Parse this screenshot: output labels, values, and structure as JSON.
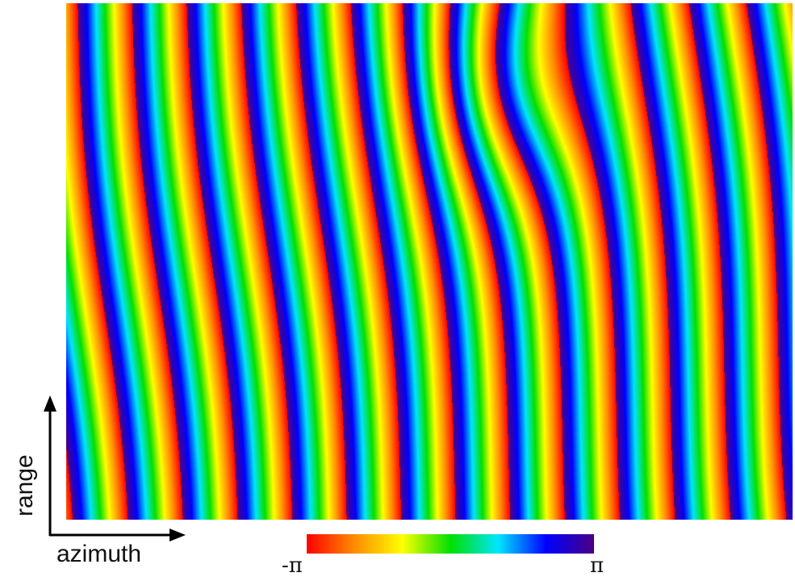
{
  "image": {
    "kind": "wrapped interferometric phase map",
    "description_visible": "vertical rainbow interference fringes, curving in the middle section",
    "fringe_count_approx": 13,
    "colormap": [
      "#ff0000",
      "#ff8c00",
      "#ffff00",
      "#00e000",
      "#00e5ff",
      "#0000ff",
      "#4b0082"
    ]
  },
  "axes": {
    "x_label": "azimuth",
    "y_label": "range"
  },
  "colorbar": {
    "min_label": "-π",
    "max_label": "π",
    "colors": [
      "#ff0000",
      "#ff8c00",
      "#ffff00",
      "#00e000",
      "#00e5ff",
      "#0000ff",
      "#4b0082"
    ]
  },
  "colors": {
    "axis_arrow": "#000000",
    "text": "#111111",
    "background": "#ffffff"
  }
}
